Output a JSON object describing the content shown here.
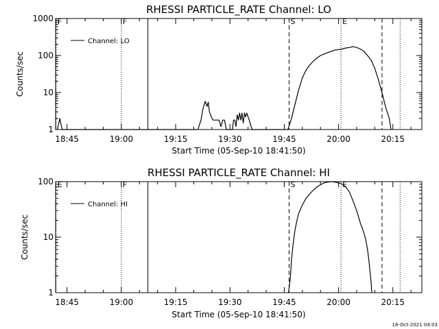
{
  "footer": {
    "timestamp": "16-Oct-2021 04:03"
  },
  "chart_data": [
    {
      "type": "line",
      "title": "RHESSI PARTICLE_RATE Channel: LO",
      "xlabel": "Start Time (05-Sep-10 18:41:50)",
      "ylabel": "Counts/sec",
      "yscale": "log",
      "ylim": [
        1,
        1000
      ],
      "yticks": [
        1,
        10,
        100,
        1000
      ],
      "ytick_labels": [
        "1",
        "10",
        "100",
        "1000"
      ],
      "xlim": [
        "18:41:50",
        "20:23:00"
      ],
      "xticks": [
        "18:45",
        "19:00",
        "19:15",
        "19:30",
        "19:45",
        "20:00",
        "20:15"
      ],
      "legend": {
        "label": "Channel: LO",
        "placement": "top-left"
      },
      "series": [
        {
          "name": "Channel: LO",
          "x": [
            "18:42:20",
            "18:42:40",
            "18:43:00",
            "18:43:20",
            "18:43:40",
            "19:21:10",
            "19:22:00",
            "19:22:30",
            "19:22:50",
            "19:23:10",
            "19:23:40",
            "19:24:00",
            "19:24:20",
            "19:24:50",
            "19:25:20",
            "19:25:50",
            "19:26:20",
            "19:27:00",
            "19:27:30",
            "19:28:00",
            "19:28:30",
            "19:29:00",
            "19:30:40",
            "19:31:00",
            "19:31:20",
            "19:31:40",
            "19:32:00",
            "19:32:20",
            "19:32:40",
            "19:33:00",
            "19:33:20",
            "19:33:40",
            "19:34:00",
            "19:34:20",
            "19:34:40",
            "19:35:00",
            "19:35:20",
            "19:35:50",
            "19:36:10",
            "19:46:00",
            "19:47:00",
            "19:48:00",
            "19:49:00",
            "19:50:00",
            "19:51:00",
            "19:52:00",
            "19:53:00",
            "19:54:00",
            "19:55:00",
            "19:56:00",
            "19:57:00",
            "19:58:00",
            "19:59:00",
            "20:00:00",
            "20:01:00",
            "20:02:00",
            "20:03:00",
            "20:04:00",
            "20:05:00",
            "20:06:00",
            "20:07:00",
            "20:08:00",
            "20:09:00",
            "20:10:00",
            "20:11:00",
            "20:12:00",
            "20:13:00",
            "20:14:00",
            "20:14:30"
          ],
          "values": [
            1,
            1.4,
            2.0,
            1.4,
            1,
            1,
            1.8,
            3.5,
            4.5,
            5.8,
            4.2,
            5.5,
            3.0,
            2.2,
            1.8,
            1.8,
            1.8,
            1.8,
            1.2,
            1.8,
            1.8,
            1,
            1,
            1.8,
            1.8,
            1.2,
            2.5,
            1.8,
            2.8,
            1.8,
            2.8,
            1.5,
            2.8,
            2.2,
            2.8,
            2.2,
            1.8,
            1.2,
            1,
            1,
            2.0,
            5,
            12,
            25,
            40,
            55,
            70,
            85,
            100,
            110,
            120,
            130,
            140,
            145,
            150,
            160,
            165,
            175,
            165,
            150,
            130,
            100,
            75,
            45,
            22,
            10,
            4,
            2,
            1
          ]
        }
      ],
      "markers": [
        {
          "label": "F",
          "time": "18:42:00",
          "style": "dotted"
        },
        {
          "label": "F",
          "time": "19:00:00",
          "style": "dotted"
        },
        {
          "label": "",
          "time": "19:07:20",
          "style": "solid"
        },
        {
          "label": "S",
          "time": "19:46:20",
          "style": "dashed"
        },
        {
          "label": "E",
          "time": "20:00:40",
          "style": "dotted"
        },
        {
          "label": "",
          "time": "20:12:00",
          "style": "dashed"
        },
        {
          "label": "",
          "time": "20:17:00",
          "style": "dotted"
        }
      ]
    },
    {
      "type": "line",
      "title": "RHESSI PARTICLE_RATE Channel: HI",
      "xlabel": "Start Time (05-Sep-10 18:41:50)",
      "ylabel": "Counts/sec",
      "yscale": "log",
      "ylim": [
        1,
        100
      ],
      "yticks": [
        1,
        10,
        100
      ],
      "ytick_labels": [
        "1",
        "10",
        "100"
      ],
      "xlim": [
        "18:41:50",
        "20:23:00"
      ],
      "xticks": [
        "18:45",
        "19:00",
        "19:15",
        "19:30",
        "19:45",
        "20:00",
        "20:15"
      ],
      "legend": {
        "label": "Channel: HI",
        "placement": "top-left"
      },
      "series": [
        {
          "name": "Channel: HI",
          "x": [
            "19:46:10",
            "19:46:40",
            "19:47:00",
            "19:47:30",
            "19:48:00",
            "19:48:30",
            "19:49:00",
            "19:50:00",
            "19:51:00",
            "19:52:00",
            "19:53:00",
            "19:54:00",
            "19:55:00",
            "19:56:00",
            "19:57:00",
            "19:58:00",
            "19:59:00",
            "20:00:00",
            "20:01:00",
            "20:02:00",
            "20:03:00",
            "20:04:00",
            "20:05:00",
            "20:06:00",
            "20:07:00",
            "20:07:30",
            "20:08:00",
            "20:08:20",
            "20:08:40",
            "20:09:00",
            "20:09:10"
          ],
          "values": [
            1,
            1.8,
            4,
            8,
            14,
            20,
            27,
            38,
            50,
            60,
            70,
            80,
            88,
            95,
            98,
            100,
            98,
            95,
            90,
            80,
            65,
            45,
            30,
            18,
            12,
            9,
            6,
            4,
            2.5,
            1.5,
            1
          ]
        }
      ],
      "markers": [
        {
          "label": "E",
          "time": "18:42:00",
          "style": "dotted"
        },
        {
          "label": "F",
          "time": "19:00:00",
          "style": "dotted"
        },
        {
          "label": "",
          "time": "19:07:20",
          "style": "solid"
        },
        {
          "label": "S",
          "time": "19:46:20",
          "style": "dashed"
        },
        {
          "label": "E",
          "time": "20:00:40",
          "style": "dotted"
        },
        {
          "label": "",
          "time": "20:12:00",
          "style": "dashed"
        },
        {
          "label": "",
          "time": "20:17:00",
          "style": "dotted"
        }
      ]
    }
  ]
}
